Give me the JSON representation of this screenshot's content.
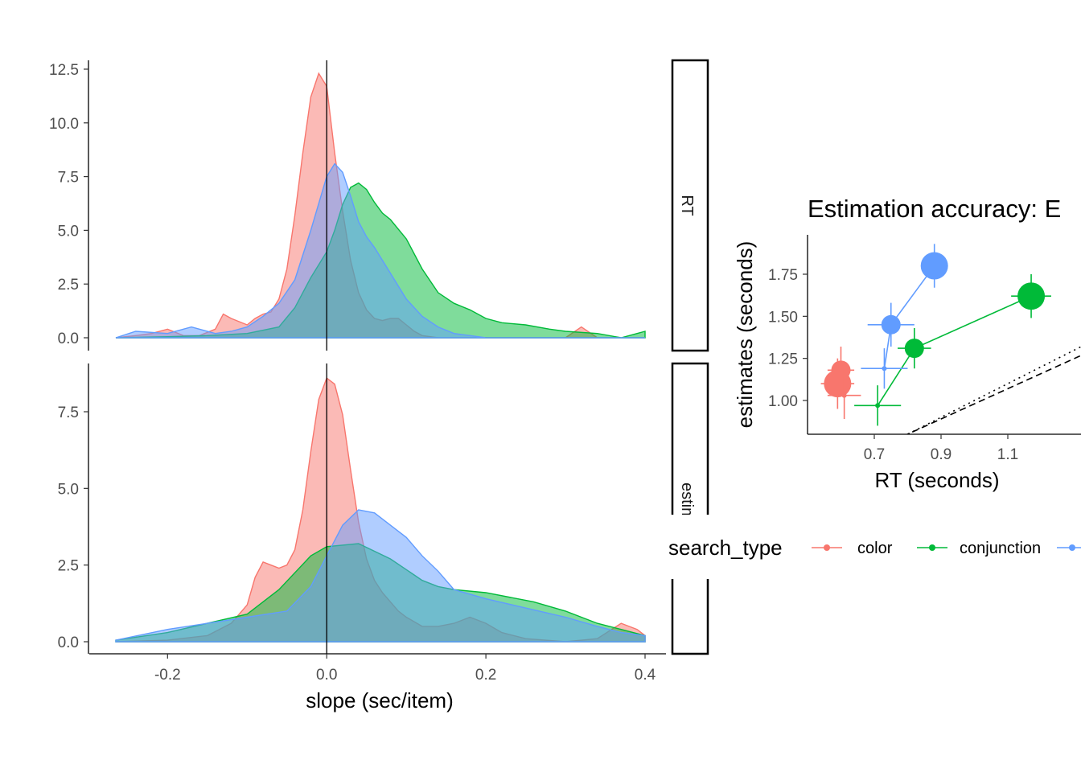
{
  "colors": {
    "color": "#F8766D",
    "conjunction": "#00BA38",
    "blue": "#619CFF"
  },
  "chart_data": [
    {
      "type": "area",
      "subtype": "density",
      "facets": [
        "RT",
        "estim"
      ],
      "xlabel": "slope (sec/item)",
      "xlim": [
        -0.27,
        0.4
      ],
      "x_ticks": [
        -0.2,
        0.0,
        0.2,
        0.4
      ],
      "x_tick_labels": [
        "-0.2",
        "0.0",
        "0.2",
        "0.4"
      ],
      "vline_x": 0,
      "panels": [
        {
          "facet": "RT",
          "ylim": [
            0,
            12.5
          ],
          "y_ticks": [
            0,
            2.5,
            5,
            7.5,
            10,
            12.5
          ],
          "y_tick_labels": [
            "0.0",
            "2.5",
            "5.0",
            "7.5",
            "10.0",
            "12.5"
          ],
          "series": [
            {
              "key": "color",
              "color": "#F8766D",
              "x": [
                -0.265,
                -0.24,
                -0.22,
                -0.2,
                -0.18,
                -0.16,
                -0.14,
                -0.13,
                -0.12,
                -0.1,
                -0.09,
                -0.08,
                -0.07,
                -0.06,
                -0.05,
                -0.04,
                -0.03,
                -0.02,
                -0.01,
                0.0,
                0.01,
                0.02,
                0.03,
                0.04,
                0.05,
                0.06,
                0.07,
                0.08,
                0.09,
                0.1,
                0.11,
                0.12,
                0.14,
                0.2,
                0.3,
                0.32,
                0.34,
                0.4
              ],
              "y": [
                0.0,
                0.1,
                0.2,
                0.4,
                0.1,
                0.1,
                0.4,
                1.1,
                0.9,
                0.6,
                0.9,
                1.1,
                1.2,
                1.8,
                3.2,
                5.7,
                8.6,
                11.2,
                12.3,
                11.7,
                8.6,
                5.9,
                3.6,
                2.1,
                1.3,
                0.9,
                0.8,
                0.9,
                0.9,
                0.6,
                0.3,
                0.1,
                0.0,
                0.0,
                0.0,
                0.5,
                0.0,
                0.0
              ]
            },
            {
              "key": "conjunction",
              "color": "#00BA38",
              "x": [
                -0.265,
                -0.2,
                -0.15,
                -0.1,
                -0.06,
                -0.04,
                -0.02,
                0.0,
                0.01,
                0.02,
                0.03,
                0.04,
                0.05,
                0.06,
                0.07,
                0.08,
                0.1,
                0.12,
                0.14,
                0.16,
                0.18,
                0.2,
                0.22,
                0.25,
                0.28,
                0.3,
                0.34,
                0.37,
                0.39,
                0.4
              ],
              "y": [
                0.0,
                0.05,
                0.1,
                0.2,
                0.5,
                1.4,
                2.8,
                4.0,
                5.0,
                6.2,
                7.0,
                7.2,
                6.9,
                6.3,
                5.8,
                5.5,
                4.6,
                3.2,
                2.1,
                1.6,
                1.3,
                0.9,
                0.7,
                0.6,
                0.4,
                0.3,
                0.2,
                0.0,
                0.2,
                0.3
              ]
            },
            {
              "key": "blue",
              "color": "#619CFF",
              "x": [
                -0.265,
                -0.24,
                -0.2,
                -0.17,
                -0.14,
                -0.12,
                -0.1,
                -0.08,
                -0.06,
                -0.04,
                -0.02,
                0.0,
                0.01,
                0.02,
                0.03,
                0.04,
                0.05,
                0.06,
                0.08,
                0.1,
                0.12,
                0.14,
                0.16,
                0.18,
                0.2,
                0.3,
                0.4
              ],
              "y": [
                0.0,
                0.3,
                0.2,
                0.5,
                0.2,
                0.3,
                0.5,
                1.0,
                1.6,
                2.7,
                5.0,
                7.5,
                8.1,
                7.7,
                6.6,
                5.4,
                4.7,
                4.2,
                3.0,
                1.8,
                1.0,
                0.5,
                0.2,
                0.1,
                0.0,
                0.0,
                0.0
              ]
            }
          ]
        },
        {
          "facet": "estim",
          "ylim": [
            0,
            8.9
          ],
          "y_ticks": [
            0,
            2.5,
            5,
            7.5
          ],
          "y_tick_labels": [
            "0.0",
            "2.5",
            "5.0",
            "7.5"
          ],
          "series": [
            {
              "key": "color",
              "color": "#F8766D",
              "x": [
                -0.265,
                -0.2,
                -0.15,
                -0.12,
                -0.1,
                -0.09,
                -0.08,
                -0.07,
                -0.06,
                -0.05,
                -0.04,
                -0.03,
                -0.02,
                -0.01,
                0.0,
                0.01,
                0.02,
                0.03,
                0.04,
                0.05,
                0.06,
                0.07,
                0.08,
                0.09,
                0.1,
                0.12,
                0.14,
                0.16,
                0.18,
                0.2,
                0.22,
                0.25,
                0.3,
                0.34,
                0.37,
                0.39,
                0.4
              ],
              "y": [
                0.0,
                0.05,
                0.2,
                0.6,
                1.2,
                2.1,
                2.6,
                2.5,
                2.4,
                2.5,
                3.0,
                4.3,
                6.2,
                7.9,
                8.6,
                8.4,
                7.4,
                5.6,
                3.9,
                2.7,
                2.0,
                1.6,
                1.3,
                1.0,
                0.8,
                0.5,
                0.5,
                0.6,
                0.8,
                0.6,
                0.3,
                0.1,
                0.0,
                0.1,
                0.6,
                0.4,
                0.2
              ]
            },
            {
              "key": "conjunction",
              "color": "#00BA38",
              "x": [
                -0.265,
                -0.2,
                -0.15,
                -0.1,
                -0.06,
                -0.02,
                0.0,
                0.04,
                0.08,
                0.12,
                0.14,
                0.16,
                0.2,
                0.26,
                0.3,
                0.34,
                0.37,
                0.4
              ],
              "y": [
                0.05,
                0.3,
                0.6,
                0.9,
                1.7,
                2.8,
                3.1,
                3.2,
                2.7,
                2.0,
                1.8,
                1.7,
                1.6,
                1.3,
                1.0,
                0.6,
                0.4,
                0.2
              ]
            },
            {
              "key": "blue",
              "color": "#619CFF",
              "x": [
                -0.265,
                -0.2,
                -0.15,
                -0.1,
                -0.05,
                -0.02,
                0.0,
                0.02,
                0.04,
                0.06,
                0.08,
                0.1,
                0.12,
                0.14,
                0.16,
                0.2,
                0.25,
                0.3,
                0.34,
                0.37,
                0.4
              ],
              "y": [
                0.05,
                0.4,
                0.6,
                0.8,
                1.0,
                1.8,
                2.8,
                3.8,
                4.3,
                4.2,
                3.8,
                3.4,
                2.8,
                2.3,
                1.7,
                1.4,
                1.1,
                0.8,
                0.5,
                0.3,
                0.2
              ]
            }
          ]
        }
      ]
    },
    {
      "type": "scatter",
      "title": "Estimation accuracy: E",
      "xlabel": "RT (seconds)",
      "ylabel": "estimates (seconds)",
      "xlim": [
        0.53,
        1.33
      ],
      "ylim": [
        0.79,
        1.99
      ],
      "x_ticks": [
        0.7,
        0.9,
        1.1
      ],
      "x_tick_labels": [
        "0.7",
        "0.9",
        "1.1"
      ],
      "y_ticks": [
        1.0,
        1.25,
        1.5,
        1.75
      ],
      "y_tick_labels": [
        "1.00",
        "1.25",
        "1.50",
        "1.75"
      ],
      "reference_lines": [
        {
          "style": "dotted",
          "slope": 1,
          "intercept": 0
        },
        {
          "style": "dashed",
          "slope": 0.9,
          "intercept": 0.08
        }
      ],
      "series": [
        {
          "key": "color",
          "color": "#F8766D",
          "points": [
            {
              "x": 0.6,
              "y": 1.18,
              "xerr": 0.04,
              "yerr": 0.14,
              "size": "medium"
            },
            {
              "x": 0.59,
              "y": 1.1,
              "xerr": 0.05,
              "yerr": 0.15,
              "size": "large"
            },
            {
              "x": 0.61,
              "y": 1.03,
              "xerr": 0.05,
              "yerr": 0.14,
              "size": "small"
            }
          ]
        },
        {
          "key": "conjunction",
          "color": "#00BA38",
          "points": [
            {
              "x": 1.17,
              "y": 1.62,
              "xerr": 0.06,
              "yerr": 0.13,
              "size": "large"
            },
            {
              "x": 0.82,
              "y": 1.31,
              "xerr": 0.05,
              "yerr": 0.12,
              "size": "medium"
            },
            {
              "x": 0.71,
              "y": 0.97,
              "xerr": 0.07,
              "yerr": 0.12,
              "size": "small"
            }
          ]
        },
        {
          "key": "blue",
          "color": "#619CFF",
          "points": [
            {
              "x": 0.88,
              "y": 1.8,
              "xerr": 0.04,
              "yerr": 0.13,
              "size": "large"
            },
            {
              "x": 0.75,
              "y": 1.45,
              "xerr": 0.07,
              "yerr": 0.13,
              "size": "medium"
            },
            {
              "x": 0.73,
              "y": 1.19,
              "xerr": 0.07,
              "yerr": 0.12,
              "size": "small"
            }
          ]
        }
      ]
    }
  ],
  "legend": {
    "title": "search_type",
    "items": [
      {
        "key": "color",
        "label": "color",
        "color": "#F8766D"
      },
      {
        "key": "conjunction",
        "label": "conjunction",
        "color": "#00BA38"
      },
      {
        "key": "blue",
        "label": "",
        "color": "#619CFF"
      }
    ]
  }
}
